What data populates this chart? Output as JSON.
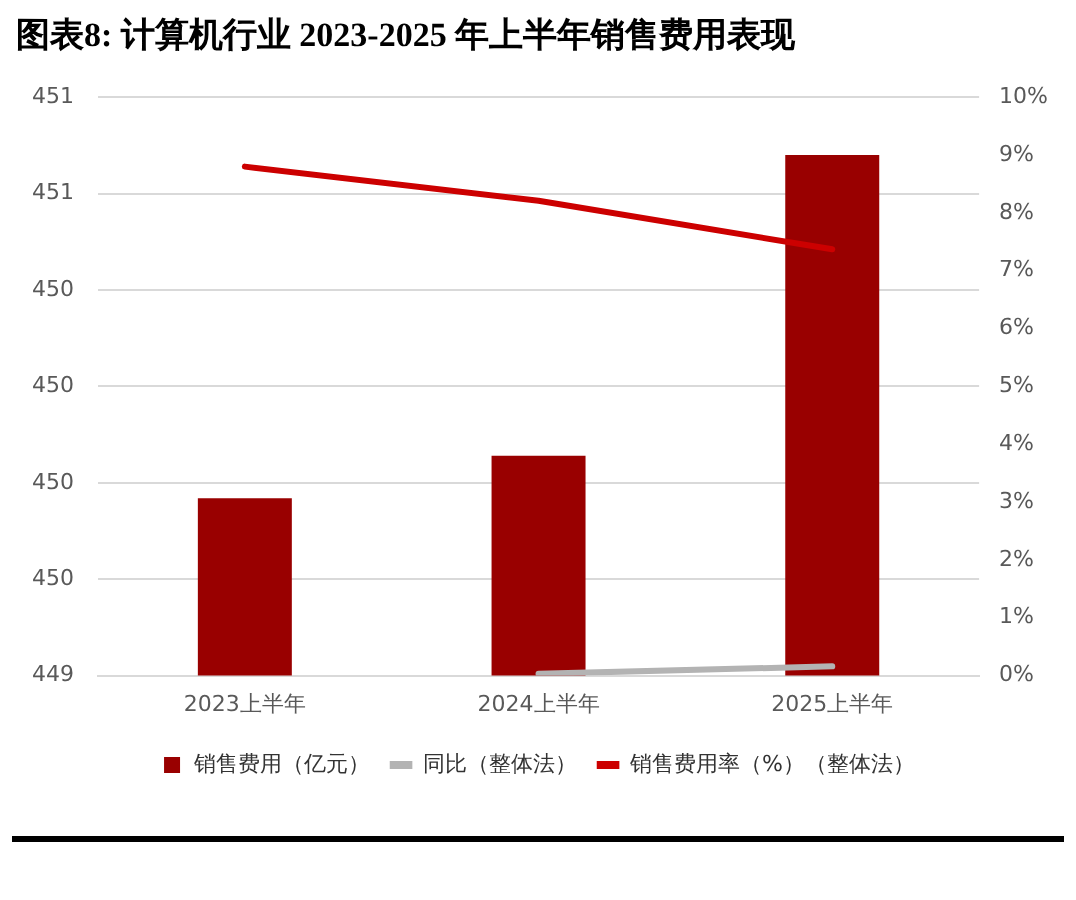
{
  "chart_data": {
    "type": "bar",
    "title": "图表8: 计算机行业 2023-2025 年上半年销售费用表现",
    "categories": [
      "2023上半年",
      "2024上半年",
      "2025上半年"
    ],
    "series": [
      {
        "name": "销售费用（亿元）",
        "color": "#990000",
        "values": [
          449.71,
          449.82,
          450.6
        ]
      },
      {
        "name": "同比（整体法）",
        "type": "line",
        "axis": "y2",
        "color": "#b3b3b3",
        "values": [
          null,
          0.03,
          0.16
        ]
      },
      {
        "name": "销售费用率（%）（整体法）",
        "type": "line",
        "axis": "y2",
        "color": "#cc0000",
        "values": [
          8.8,
          8.21,
          7.37
        ]
      }
    ],
    "ylim": [
      449.25,
      450.75
    ],
    "yticks": [
      {
        "value": 449.25,
        "label": "449"
      },
      {
        "value": 449.5,
        "label": "450"
      },
      {
        "value": 449.75,
        "label": "450"
      },
      {
        "value": 450.0,
        "label": "450"
      },
      {
        "value": 450.25,
        "label": "450"
      },
      {
        "value": 450.5,
        "label": "451"
      },
      {
        "value": 450.75,
        "label": "451"
      }
    ],
    "y2lim": [
      0,
      10
    ],
    "y2ticks": [
      {
        "value": 0,
        "label": "0%"
      },
      {
        "value": 1,
        "label": "1%"
      },
      {
        "value": 2,
        "label": "2%"
      },
      {
        "value": 3,
        "label": "3%"
      },
      {
        "value": 4,
        "label": "4%"
      },
      {
        "value": 5,
        "label": "5%"
      },
      {
        "value": 6,
        "label": "6%"
      },
      {
        "value": 7,
        "label": "7%"
      },
      {
        "value": 8,
        "label": "8%"
      },
      {
        "value": 9,
        "label": "9%"
      },
      {
        "value": 10,
        "label": "10%"
      }
    ],
    "grid": "y",
    "legend": "bottom",
    "line_style": "solid",
    "marker": "none"
  }
}
